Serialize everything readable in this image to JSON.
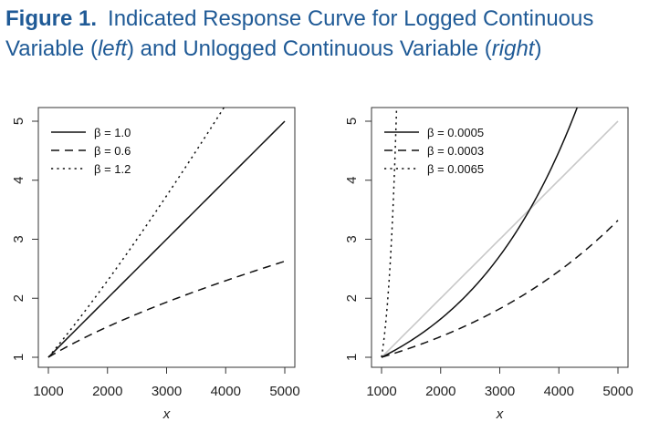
{
  "figure": {
    "label": "Figure 1.",
    "title_part1": "Indicated Response Curve for Logged Continuous Variable (",
    "title_em1": "left",
    "title_part2": ") and Unlogged Continuous Variable (",
    "title_em2": "right",
    "title_part3": ")"
  },
  "chart_data": [
    {
      "type": "line",
      "panel": "left",
      "xlabel": "x",
      "ylabel": "",
      "xlim": [
        1000,
        5000
      ],
      "ylim": [
        1,
        5
      ],
      "xticks": [
        1000,
        2000,
        3000,
        4000,
        5000
      ],
      "yticks": [
        1,
        2,
        3,
        4,
        5
      ],
      "legend_position": "top-left",
      "grid": false,
      "series": [
        {
          "name": "β = 1.0",
          "dash": "solid",
          "color": "#111111",
          "model": "power",
          "beta": 1.0
        },
        {
          "name": "β = 0.6",
          "dash": "dashed",
          "color": "#111111",
          "model": "power",
          "beta": 0.6
        },
        {
          "name": "β = 1.2",
          "dash": "dotted",
          "color": "#111111",
          "model": "power",
          "beta": 1.2
        }
      ]
    },
    {
      "type": "line",
      "panel": "right",
      "xlabel": "x",
      "ylabel": "",
      "xlim": [
        1000,
        5000
      ],
      "ylim": [
        1,
        5
      ],
      "xticks": [
        1000,
        2000,
        3000,
        4000,
        5000
      ],
      "yticks": [
        1,
        2,
        3,
        4,
        5
      ],
      "legend_position": "top-left",
      "grid": false,
      "series": [
        {
          "name": "β = 0.0005",
          "dash": "solid",
          "color": "#111111",
          "model": "exponential",
          "beta": 0.0005
        },
        {
          "name": "β = 0.0003",
          "dash": "dashed",
          "color": "#111111",
          "model": "exponential",
          "beta": 0.0003
        },
        {
          "name": "β = 0.0065",
          "dash": "dotted",
          "color": "#111111",
          "model": "exponential",
          "beta": 0.0065
        },
        {
          "name": "",
          "dash": "solid",
          "color": "#c8c8c8",
          "model": "linear",
          "beta": 1.0,
          "in_legend": false
        }
      ]
    }
  ]
}
